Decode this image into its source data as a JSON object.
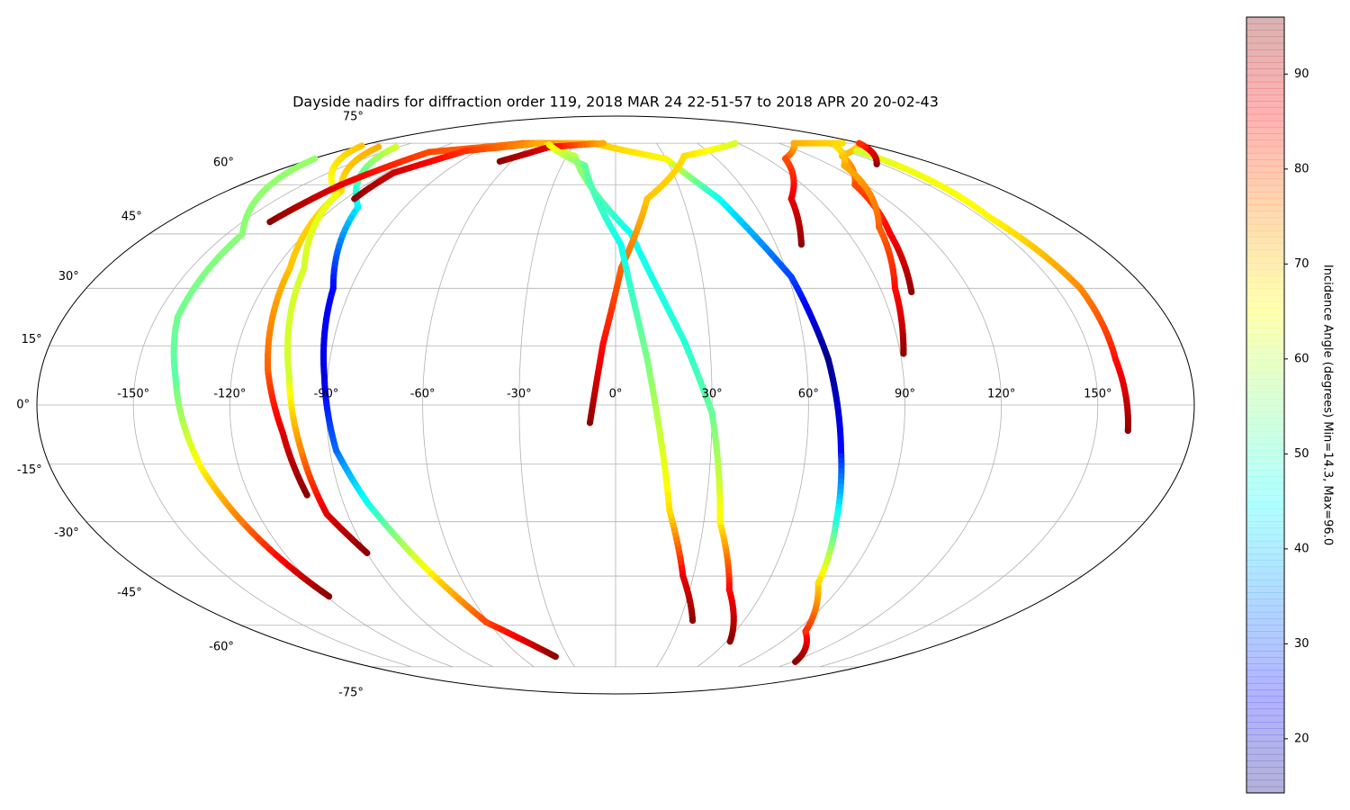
{
  "chart_data": {
    "type": "map",
    "projection": "mollweide",
    "title": "Dayside nadirs for diffraction order 119, 2018 MAR 24 22-51-57 to 2018 APR 20 20-02-43",
    "xlim": [
      -180,
      180
    ],
    "ylim": [
      -90,
      90
    ],
    "grid": true,
    "xticks": [
      {
        "value": -150,
        "label": "-150°"
      },
      {
        "value": -120,
        "label": "-120°"
      },
      {
        "value": -90,
        "label": "-90°"
      },
      {
        "value": -60,
        "label": "-60°"
      },
      {
        "value": -30,
        "label": "-30°"
      },
      {
        "value": 0,
        "label": "0°"
      },
      {
        "value": 30,
        "label": "30°"
      },
      {
        "value": 60,
        "label": "60°"
      },
      {
        "value": 90,
        "label": "90°"
      },
      {
        "value": 120,
        "label": "120°"
      },
      {
        "value": 150,
        "label": "150°"
      }
    ],
    "yticks": [
      {
        "value": -75,
        "label": "-75°"
      },
      {
        "value": -60,
        "label": "-60°"
      },
      {
        "value": -45,
        "label": "-45°"
      },
      {
        "value": -30,
        "label": "-30°"
      },
      {
        "value": -15,
        "label": "-15°"
      },
      {
        "value": 0,
        "label": "0°"
      },
      {
        "value": 15,
        "label": "15°"
      },
      {
        "value": 30,
        "label": "30°"
      },
      {
        "value": 45,
        "label": "45°"
      },
      {
        "value": 60,
        "label": "60°"
      },
      {
        "value": 75,
        "label": "75°"
      }
    ],
    "colorbar": {
      "label": "Incidence Angle (degrees) Min=14.3, Max=96.0",
      "colormap": "jet",
      "clim": [
        14.3,
        96.0
      ],
      "ticks": [
        20,
        30,
        40,
        50,
        60,
        70,
        80,
        90
      ]
    },
    "series": [
      {
        "lon": [
          -179,
          -144,
          -143,
          -137.5,
          -132,
          -127,
          -119
        ],
        "lat": [
          69,
          45,
          22.5,
          7,
          -16,
          -30,
          -51
        ],
        "values": [
          57,
          56,
          54,
          52,
          66,
          76,
          95
        ]
      },
      {
        "lon": [
          -164,
          -127,
          -115,
          -109,
          -104,
          -101
        ],
        "lat": [
          73.5,
          58,
          35.5,
          9,
          -7,
          -23
        ],
        "values": [
          72,
          68,
          70,
          78,
          88,
          95
        ]
      },
      {
        "lon": [
          -179,
          -127,
          -110,
          -102,
          -99,
          -97,
          -90
        ],
        "lat": [
          74,
          57,
          35.5,
          7,
          -11.5,
          -28,
          -38.5
        ],
        "values": [
          70,
          64,
          62,
          62,
          75,
          88,
          95
        ]
      },
      {
        "lon": [
          -152,
          -110,
          -96,
          -91,
          -88,
          -82,
          -72,
          -61,
          -38
        ],
        "lat": [
          73.5,
          53,
          30,
          7,
          -11.5,
          -25,
          -42,
          -59,
          -71
        ],
        "values": [
          62,
          44,
          25,
          22,
          33,
          46,
          64,
          80,
          95
        ]
      },
      {
        "lon": [
          -139,
          -132,
          -120,
          -68,
          -16,
          30,
          46,
          61,
          67,
          71,
          75,
          80,
          95,
          122
        ],
        "lat": [
          48.5,
          60,
          71.5,
          75,
          75,
          69,
          55.5,
          33,
          11.5,
          -11.5,
          -30,
          -47,
          -62,
          -73
        ],
        "values": [
          95,
          88,
          80,
          76,
          70,
          66,
          46,
          30,
          15,
          25,
          48,
          68,
          82,
          95
        ]
      },
      {
        "lon": [
          -116,
          -116,
          -98,
          -55,
          -25,
          6,
          22,
          30,
          35.5,
          46,
          62
        ],
        "lat": [
          55.5,
          64,
          72,
          75,
          70,
          45,
          16,
          -2,
          -30,
          -49,
          -65.5
        ],
        "values": [
          95,
          90,
          82,
          72,
          60,
          46,
          48,
          53,
          66,
          85,
          95
        ]
      },
      {
        "lon": [
          -67,
          -46,
          -9
        ],
        "lat": [
          68,
          73.5,
          75
        ],
        "values": [
          95,
          88,
          72
        ]
      },
      {
        "lon": [
          -8,
          -4,
          2,
          14,
          42,
          88
        ],
        "lat": [
          -4.5,
          15.5,
          35.5,
          55.5,
          70,
          75
        ],
        "values": [
          95,
          85,
          78,
          70,
          68,
          62
        ]
      },
      {
        "lon": [
          36,
          26,
          18,
          10,
          2,
          -17,
          -48
        ],
        "lat": [
          -58.5,
          -45,
          -27,
          11.5,
          42,
          66.5,
          74.5
        ],
        "values": [
          95,
          88,
          68,
          55,
          46,
          53,
          66
        ]
      },
      {
        "lon": [
          69.5,
          78,
          101,
          131,
          167
        ],
        "lat": [
          42,
          55.5,
          69,
          75,
          75
        ],
        "values": [
          95,
          88,
          80,
          72,
          68
        ]
      },
      {
        "lon": [
          100,
          106,
          115,
          139,
          179
        ],
        "lat": [
          29,
          45,
          60,
          70,
          75
        ],
        "values": [
          95,
          86,
          80,
          72,
          68
        ]
      },
      {
        "lon": [
          91,
          95,
          104,
          127,
          153
        ],
        "lat": [
          13,
          30,
          47,
          66.5,
          73.5
        ],
        "values": [
          95,
          85,
          78,
          72,
          68
        ]
      },
      {
        "lon": [
          160,
          157.5,
          158,
          153,
          157,
          158
        ],
        "lat": [
          -6.5,
          11.5,
          30,
          50,
          66.5,
          72
        ],
        "values": [
          95,
          85,
          75,
          66,
          64,
          62
        ]
      },
      {
        "lon": [
          147,
          167,
          179
        ],
        "lat": [
          67,
          72,
          75
        ],
        "values": [
          95,
          88,
          82
        ]
      }
    ]
  }
}
